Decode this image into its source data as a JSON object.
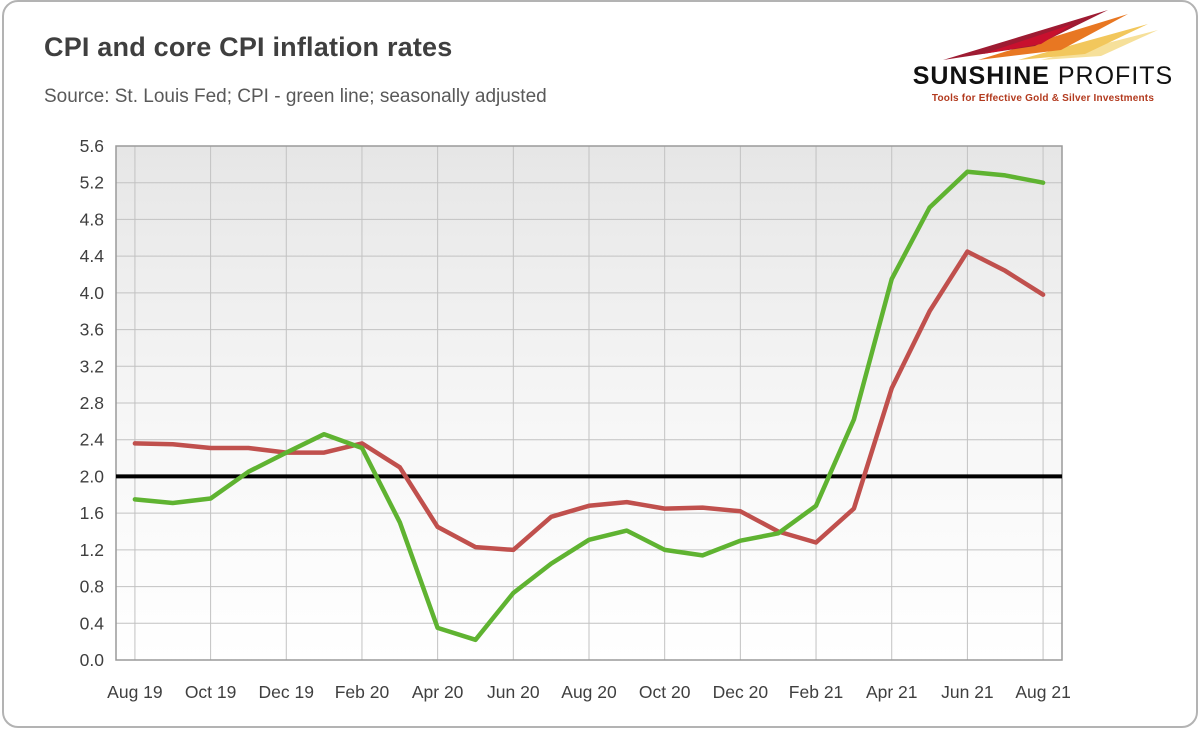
{
  "header": {
    "title": "CPI and core CPI inflation rates",
    "subtitle": "Source: St. Louis Fed; CPI - green line; seasonally adjusted"
  },
  "logo": {
    "name_primary": "SUNSHINE",
    "name_secondary": " PROFITS",
    "tagline": "Tools for Effective Gold & Silver Investments",
    "colors": {
      "maroon": "#9e1b32",
      "orange": "#e87722",
      "gold": "#f2c75c"
    }
  },
  "chart_data": {
    "type": "line",
    "title": "CPI and core CPI inflation rates",
    "xlabel": "",
    "ylabel": "",
    "ylim": [
      0.0,
      5.6
    ],
    "ytick_step": 0.4,
    "grid": true,
    "legend_position": "none",
    "reference_line": {
      "value": 2.0,
      "color": "#000000",
      "width": 4
    },
    "months": [
      "Aug 19",
      "Sep 19",
      "Oct 19",
      "Nov 19",
      "Dec 19",
      "Jan 20",
      "Feb 20",
      "Mar 20",
      "Apr 20",
      "May 20",
      "Jun 20",
      "Jul 20",
      "Aug 20",
      "Sep 20",
      "Oct 20",
      "Nov 20",
      "Dec 20",
      "Jan 21",
      "Feb 21",
      "Mar 21",
      "Apr 21",
      "May 21",
      "Jun 21",
      "Jul 21",
      "Aug 21"
    ],
    "x_tick_labels": [
      "Aug 19",
      "Oct 19",
      "Dec 19",
      "Feb 20",
      "Apr 20",
      "Jun 20",
      "Aug 20",
      "Oct 20",
      "Dec 20",
      "Feb 21",
      "Apr 21",
      "Jun 21",
      "Aug 21"
    ],
    "series": [
      {
        "name": "Core CPI",
        "color": "#c0504d",
        "values": [
          2.36,
          2.35,
          2.31,
          2.31,
          2.26,
          2.26,
          2.36,
          2.1,
          1.45,
          1.23,
          1.2,
          1.56,
          1.68,
          1.72,
          1.65,
          1.66,
          1.62,
          1.4,
          1.28,
          1.65,
          2.96,
          3.8,
          4.45,
          4.24,
          3.98
        ]
      },
      {
        "name": "CPI",
        "color": "#5fb331",
        "values": [
          1.75,
          1.71,
          1.76,
          2.05,
          2.26,
          2.46,
          2.31,
          1.5,
          0.35,
          0.22,
          0.73,
          1.05,
          1.31,
          1.41,
          1.2,
          1.14,
          1.3,
          1.38,
          1.68,
          2.62,
          4.15,
          4.93,
          5.32,
          5.28,
          5.2
        ]
      }
    ]
  }
}
